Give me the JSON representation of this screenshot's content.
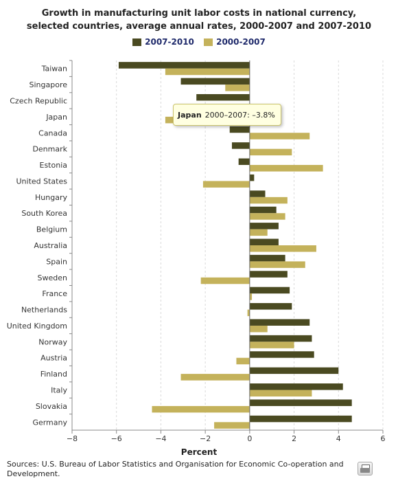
{
  "title_line1": "Growth in manufacturing unit labor costs in national currency,",
  "title_line2": "selected countries, average annual rates, 2000-2007 and 2007-2010",
  "legend": [
    {
      "name": "2007-2010",
      "color": "#4a4a21"
    },
    {
      "name": "2000-2007",
      "color": "#c4b25b"
    }
  ],
  "tooltip": {
    "country": "Japan",
    "text": "2000–2007: –3.8%"
  },
  "source": "Sources: U.S. Bureau of Labor Statistics and Organisation for Economic Co-operation and Development.",
  "chart_data": {
    "type": "bar",
    "orientation": "horizontal",
    "categories": [
      "Taiwan",
      "Singapore",
      "Czech Republic",
      "Japan",
      "Canada",
      "Denmark",
      "Estonia",
      "United States",
      "Hungary",
      "South Korea",
      "Belgium",
      "Australia",
      "Spain",
      "Sweden",
      "France",
      "Netherlands",
      "United Kingdom",
      "Norway",
      "Austria",
      "Finland",
      "Italy",
      "Slovakia",
      "Germany"
    ],
    "series": [
      {
        "name": "2007-2010",
        "color": "#4a4a21",
        "values": [
          -5.9,
          -3.1,
          -2.4,
          -0.3,
          -0.9,
          -0.8,
          -0.5,
          0.2,
          0.7,
          1.2,
          1.3,
          1.3,
          1.6,
          1.7,
          1.8,
          1.9,
          2.7,
          2.8,
          2.9,
          4.0,
          4.2,
          4.6,
          4.6
        ]
      },
      {
        "name": "2000-2007",
        "color": "#c4b25b",
        "values": [
          -3.8,
          -1.1,
          0.0,
          -3.8,
          2.7,
          1.9,
          3.3,
          -2.1,
          1.7,
          1.6,
          0.8,
          3.0,
          2.5,
          -2.2,
          0.1,
          -0.1,
          0.8,
          2.0,
          -0.6,
          -3.1,
          2.8,
          -4.4,
          -1.6
        ]
      }
    ],
    "xlabel": "Percent",
    "xlim": [
      -8,
      6
    ],
    "xticks": [
      -8,
      -6,
      -4,
      -2,
      0,
      2,
      4,
      6
    ],
    "grid": true
  }
}
